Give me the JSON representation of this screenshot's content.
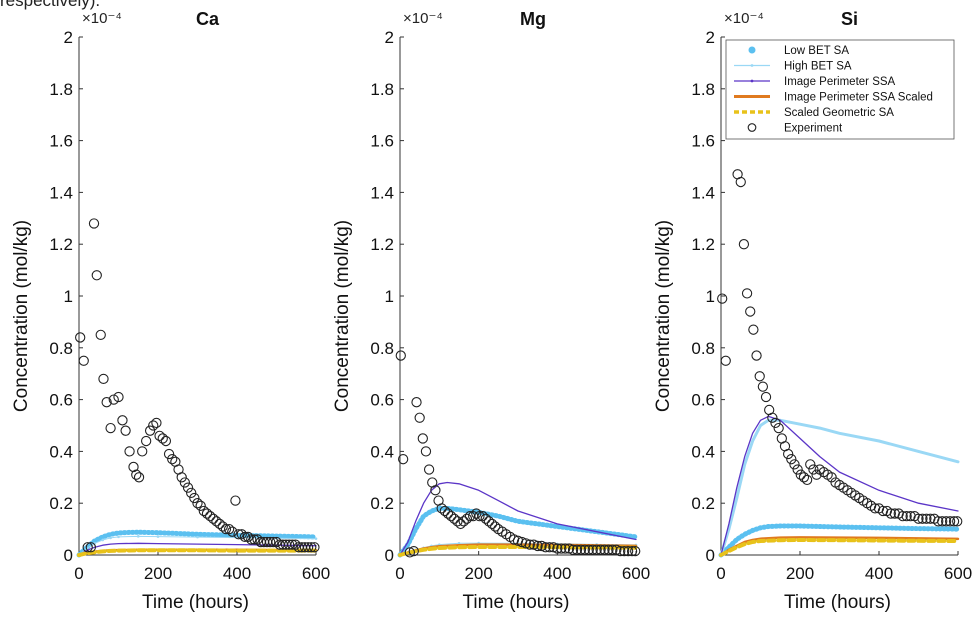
{
  "top_caption": "respectively).",
  "legend_entries": [
    {
      "label": "Low BET SA",
      "color": "#5bc0f0",
      "style": "dot"
    },
    {
      "label": "High BET SA",
      "color": "#9ad8f5",
      "style": "line-dot"
    },
    {
      "label": "Image Perimeter SSA",
      "color": "#5b35c7",
      "style": "line"
    },
    {
      "label": "Image Perimeter SSA Scaled",
      "color": "#e07a1f",
      "style": "thick-line"
    },
    {
      "label": "Scaled Geometric SA",
      "color": "#e8c21a",
      "style": "dashed"
    },
    {
      "label": "Experiment",
      "color": "#222222",
      "style": "circle"
    }
  ],
  "chart_data": [
    {
      "type": "scatter",
      "title": "Ca",
      "xlabel": "Time (hours)",
      "ylabel": "Concentration (mol/kg)",
      "exponent_label": "×10⁻⁴",
      "xlim": [
        0,
        600
      ],
      "ylim": [
        0,
        2
      ],
      "xticks": [
        0,
        200,
        400,
        600
      ],
      "yticks": [
        0,
        0.2,
        0.4,
        0.6,
        0.8,
        1,
        1.2,
        1.4,
        1.6,
        1.8,
        2
      ],
      "grid": false,
      "legend": "none",
      "series": [
        {
          "name": "Low BET SA",
          "style": "dot",
          "color": "#5bc0f0",
          "width": 4,
          "x": [
            0,
            20,
            40,
            60,
            80,
            100,
            120,
            150,
            200,
            250,
            300,
            400,
            500,
            600
          ],
          "y": [
            0,
            0.03,
            0.055,
            0.07,
            0.08,
            0.085,
            0.087,
            0.088,
            0.086,
            0.083,
            0.08,
            0.076,
            0.073,
            0.07
          ]
        },
        {
          "name": "High BET SA",
          "style": "line-dot",
          "color": "#9ad8f5",
          "width": 1,
          "x": [
            0,
            20,
            40,
            60,
            80,
            100,
            150,
            200,
            300,
            400,
            500,
            600
          ],
          "y": [
            0,
            0.025,
            0.045,
            0.058,
            0.066,
            0.07,
            0.072,
            0.071,
            0.069,
            0.067,
            0.065,
            0.063
          ]
        },
        {
          "name": "Image Perimeter SSA",
          "style": "line",
          "color": "#5b35c7",
          "width": 1.3,
          "x": [
            0,
            20,
            40,
            60,
            80,
            100,
            150,
            200,
            300,
            400,
            500,
            600
          ],
          "y": [
            0,
            0.018,
            0.03,
            0.038,
            0.042,
            0.044,
            0.045,
            0.044,
            0.042,
            0.04,
            0.038,
            0.036
          ]
        },
        {
          "name": "Image Perimeter SSA Scaled",
          "style": "thick-line",
          "color": "#e07a1f",
          "width": 2.5,
          "x": [
            0,
            20,
            40,
            60,
            80,
            100,
            150,
            200,
            300,
            400,
            500,
            600
          ],
          "y": [
            0,
            0.008,
            0.013,
            0.016,
            0.018,
            0.019,
            0.02,
            0.02,
            0.02,
            0.02,
            0.019,
            0.019
          ]
        },
        {
          "name": "Scaled Geometric SA",
          "style": "dashed",
          "color": "#e8c21a",
          "width": 4,
          "x": [
            0,
            20,
            40,
            60,
            80,
            100,
            150,
            200,
            300,
            400,
            500,
            600
          ],
          "y": [
            0,
            0.007,
            0.011,
            0.014,
            0.016,
            0.017,
            0.018,
            0.018,
            0.018,
            0.017,
            0.017,
            0.017
          ]
        },
        {
          "name": "Experiment",
          "style": "circle",
          "color": "#222222",
          "width": 1,
          "x": [
            3,
            12,
            22,
            30,
            38,
            45,
            55,
            62,
            70,
            80,
            88,
            100,
            110,
            118,
            128,
            138,
            145,
            152,
            160,
            170,
            180,
            188,
            196,
            204,
            212,
            220,
            228,
            236,
            244,
            252,
            260,
            268,
            276,
            284,
            292,
            300,
            308,
            316,
            324,
            332,
            340,
            348,
            356,
            364,
            372,
            380,
            388,
            396,
            404,
            412,
            420,
            428,
            436,
            444,
            452,
            460,
            468,
            476,
            484,
            492,
            500,
            508,
            516,
            524,
            532,
            540,
            548,
            556,
            564,
            572,
            580,
            588,
            596
          ],
          "y": [
            0.84,
            0.75,
            0.03,
            0.03,
            1.28,
            1.08,
            0.85,
            0.68,
            0.59,
            0.49,
            0.6,
            0.61,
            0.52,
            0.48,
            0.4,
            0.34,
            0.31,
            0.3,
            0.4,
            0.44,
            0.48,
            0.5,
            0.51,
            0.46,
            0.45,
            0.44,
            0.39,
            0.37,
            0.36,
            0.33,
            0.3,
            0.28,
            0.26,
            0.24,
            0.22,
            0.2,
            0.19,
            0.17,
            0.16,
            0.15,
            0.14,
            0.13,
            0.12,
            0.11,
            0.1,
            0.1,
            0.09,
            0.21,
            0.08,
            0.08,
            0.07,
            0.07,
            0.06,
            0.06,
            0.06,
            0.05,
            0.05,
            0.05,
            0.05,
            0.05,
            0.05,
            0.04,
            0.04,
            0.04,
            0.04,
            0.04,
            0.04,
            0.03,
            0.03,
            0.03,
            0.03,
            0.03,
            0.03
          ]
        }
      ]
    },
    {
      "type": "scatter",
      "title": "Mg",
      "xlabel": "Time (hours)",
      "ylabel": "Concentration (mol/kg)",
      "exponent_label": "×10⁻⁴",
      "xlim": [
        0,
        600
      ],
      "ylim": [
        0,
        2
      ],
      "xticks": [
        0,
        200,
        400,
        600
      ],
      "yticks": [
        0,
        0.2,
        0.4,
        0.6,
        0.8,
        1,
        1.2,
        1.4,
        1.6,
        1.8,
        2
      ],
      "grid": false,
      "legend": "none",
      "series": [
        {
          "name": "Low BET SA",
          "style": "dot",
          "color": "#5bc0f0",
          "width": 4,
          "x": [
            0,
            20,
            40,
            60,
            80,
            100,
            120,
            150,
            200,
            250,
            300,
            400,
            500,
            600
          ],
          "y": [
            0,
            0.04,
            0.1,
            0.15,
            0.17,
            0.18,
            0.18,
            0.175,
            0.165,
            0.15,
            0.13,
            0.11,
            0.09,
            0.07
          ]
        },
        {
          "name": "High BET SA",
          "style": "line-dot",
          "color": "#9ad8f5",
          "width": 1,
          "x": [
            0,
            20,
            40,
            60,
            80,
            100,
            150,
            200,
            300,
            400,
            500,
            600
          ],
          "y": [
            0,
            0.01,
            0.02,
            0.028,
            0.035,
            0.04,
            0.045,
            0.046,
            0.045,
            0.043,
            0.041,
            0.039
          ]
        },
        {
          "name": "Image Perimeter SSA",
          "style": "line",
          "color": "#5b35c7",
          "width": 1.3,
          "x": [
            0,
            20,
            40,
            60,
            80,
            100,
            120,
            150,
            200,
            250,
            300,
            400,
            500,
            600
          ],
          "y": [
            0,
            0.05,
            0.13,
            0.2,
            0.25,
            0.275,
            0.28,
            0.275,
            0.25,
            0.21,
            0.17,
            0.12,
            0.09,
            0.06
          ]
        },
        {
          "name": "Image Perimeter SSA Scaled",
          "style": "thick-line",
          "color": "#e07a1f",
          "width": 2.5,
          "x": [
            0,
            20,
            40,
            60,
            80,
            100,
            150,
            200,
            300,
            400,
            500,
            600
          ],
          "y": [
            0,
            0.01,
            0.018,
            0.025,
            0.03,
            0.034,
            0.038,
            0.04,
            0.04,
            0.039,
            0.037,
            0.035
          ]
        },
        {
          "name": "Scaled Geometric SA",
          "style": "dashed",
          "color": "#e8c21a",
          "width": 4,
          "x": [
            0,
            20,
            40,
            60,
            80,
            100,
            150,
            200,
            300,
            400,
            500,
            600
          ],
          "y": [
            0,
            0.008,
            0.015,
            0.02,
            0.024,
            0.027,
            0.03,
            0.031,
            0.031,
            0.03,
            0.029,
            0.028
          ]
        },
        {
          "name": "Experiment",
          "style": "circle",
          "color": "#222222",
          "width": 1,
          "x": [
            2,
            8,
            25,
            35,
            42,
            50,
            58,
            66,
            74,
            82,
            90,
            98,
            106,
            114,
            122,
            130,
            138,
            146,
            154,
            162,
            170,
            178,
            186,
            194,
            202,
            210,
            218,
            226,
            234,
            242,
            250,
            260,
            270,
            280,
            290,
            300,
            310,
            320,
            330,
            340,
            350,
            360,
            370,
            380,
            390,
            400,
            410,
            420,
            430,
            440,
            450,
            460,
            470,
            480,
            490,
            500,
            510,
            520,
            530,
            540,
            550,
            560,
            570,
            580,
            590,
            598
          ],
          "y": [
            0.77,
            0.37,
            0.01,
            0.015,
            0.59,
            0.53,
            0.45,
            0.4,
            0.33,
            0.28,
            0.25,
            0.21,
            0.18,
            0.17,
            0.16,
            0.15,
            0.14,
            0.13,
            0.12,
            0.13,
            0.14,
            0.15,
            0.15,
            0.16,
            0.15,
            0.15,
            0.14,
            0.13,
            0.12,
            0.11,
            0.1,
            0.09,
            0.08,
            0.07,
            0.06,
            0.055,
            0.05,
            0.045,
            0.04,
            0.04,
            0.035,
            0.035,
            0.03,
            0.03,
            0.03,
            0.025,
            0.025,
            0.025,
            0.025,
            0.02,
            0.02,
            0.02,
            0.02,
            0.02,
            0.02,
            0.02,
            0.02,
            0.02,
            0.02,
            0.02,
            0.02,
            0.015,
            0.015,
            0.015,
            0.015,
            0.015
          ]
        }
      ]
    },
    {
      "type": "scatter",
      "title": "Si",
      "xlabel": "Time (hours)",
      "ylabel": "Concentration (mol/kg)",
      "exponent_label": "×10⁻⁴",
      "xlim": [
        0,
        600
      ],
      "ylim": [
        0,
        2
      ],
      "xticks": [
        0,
        200,
        400,
        600
      ],
      "yticks": [
        0,
        0.2,
        0.4,
        0.6,
        0.8,
        1,
        1.2,
        1.4,
        1.6,
        1.8,
        2
      ],
      "grid": false,
      "legend": "top-right",
      "series": [
        {
          "name": "Low BET SA",
          "style": "dot",
          "color": "#5bc0f0",
          "width": 4,
          "x": [
            0,
            20,
            40,
            60,
            80,
            100,
            120,
            150,
            200,
            250,
            300,
            400,
            500,
            600
          ],
          "y": [
            0,
            0.03,
            0.06,
            0.08,
            0.095,
            0.105,
            0.11,
            0.112,
            0.112,
            0.11,
            0.108,
            0.105,
            0.102,
            0.1
          ]
        },
        {
          "name": "High BET SA",
          "style": "line-dot",
          "color": "#9ad8f5",
          "width": 3,
          "x": [
            0,
            20,
            40,
            60,
            80,
            100,
            120,
            150,
            200,
            250,
            300,
            400,
            500,
            600
          ],
          "y": [
            0,
            0.1,
            0.22,
            0.35,
            0.44,
            0.5,
            0.52,
            0.52,
            0.505,
            0.49,
            0.47,
            0.44,
            0.4,
            0.36
          ]
        },
        {
          "name": "Image Perimeter SSA",
          "style": "line",
          "color": "#5b35c7",
          "width": 1.3,
          "x": [
            0,
            20,
            40,
            60,
            80,
            100,
            120,
            150,
            200,
            250,
            300,
            400,
            500,
            600
          ],
          "y": [
            0,
            0.12,
            0.26,
            0.38,
            0.47,
            0.52,
            0.535,
            0.52,
            0.45,
            0.38,
            0.32,
            0.25,
            0.2,
            0.17
          ]
        },
        {
          "name": "Image Perimeter SSA Scaled",
          "style": "thick-line",
          "color": "#e07a1f",
          "width": 2.5,
          "x": [
            0,
            20,
            40,
            60,
            80,
            100,
            150,
            200,
            300,
            400,
            500,
            600
          ],
          "y": [
            0,
            0.02,
            0.035,
            0.05,
            0.058,
            0.063,
            0.067,
            0.068,
            0.067,
            0.066,
            0.064,
            0.062
          ]
        },
        {
          "name": "Scaled Geometric SA",
          "style": "dashed",
          "color": "#e8c21a",
          "width": 4,
          "x": [
            0,
            20,
            40,
            60,
            80,
            100,
            150,
            200,
            300,
            400,
            500,
            600
          ],
          "y": [
            0,
            0.015,
            0.03,
            0.042,
            0.05,
            0.054,
            0.057,
            0.058,
            0.057,
            0.056,
            0.055,
            0.054
          ]
        },
        {
          "name": "Experiment",
          "style": "circle",
          "color": "#222222",
          "width": 1,
          "x": [
            3,
            12,
            42,
            50,
            58,
            66,
            74,
            82,
            90,
            98,
            106,
            114,
            122,
            130,
            138,
            146,
            154,
            162,
            170,
            178,
            186,
            194,
            202,
            210,
            218,
            226,
            234,
            242,
            250,
            260,
            270,
            280,
            290,
            300,
            310,
            320,
            330,
            340,
            350,
            360,
            370,
            380,
            390,
            400,
            410,
            420,
            430,
            440,
            450,
            460,
            470,
            480,
            490,
            500,
            510,
            520,
            530,
            540,
            550,
            560,
            570,
            580,
            590,
            598
          ],
          "y": [
            0.99,
            0.75,
            1.47,
            1.44,
            1.2,
            1.01,
            0.94,
            0.87,
            0.77,
            0.69,
            0.65,
            0.61,
            0.56,
            0.53,
            0.51,
            0.49,
            0.45,
            0.42,
            0.39,
            0.37,
            0.35,
            0.33,
            0.31,
            0.3,
            0.29,
            0.35,
            0.33,
            0.31,
            0.33,
            0.32,
            0.31,
            0.3,
            0.28,
            0.27,
            0.26,
            0.25,
            0.24,
            0.23,
            0.22,
            0.21,
            0.2,
            0.19,
            0.18,
            0.18,
            0.17,
            0.17,
            0.16,
            0.16,
            0.16,
            0.15,
            0.15,
            0.15,
            0.15,
            0.14,
            0.14,
            0.14,
            0.14,
            0.14,
            0.13,
            0.13,
            0.13,
            0.13,
            0.13,
            0.13
          ]
        }
      ]
    }
  ]
}
